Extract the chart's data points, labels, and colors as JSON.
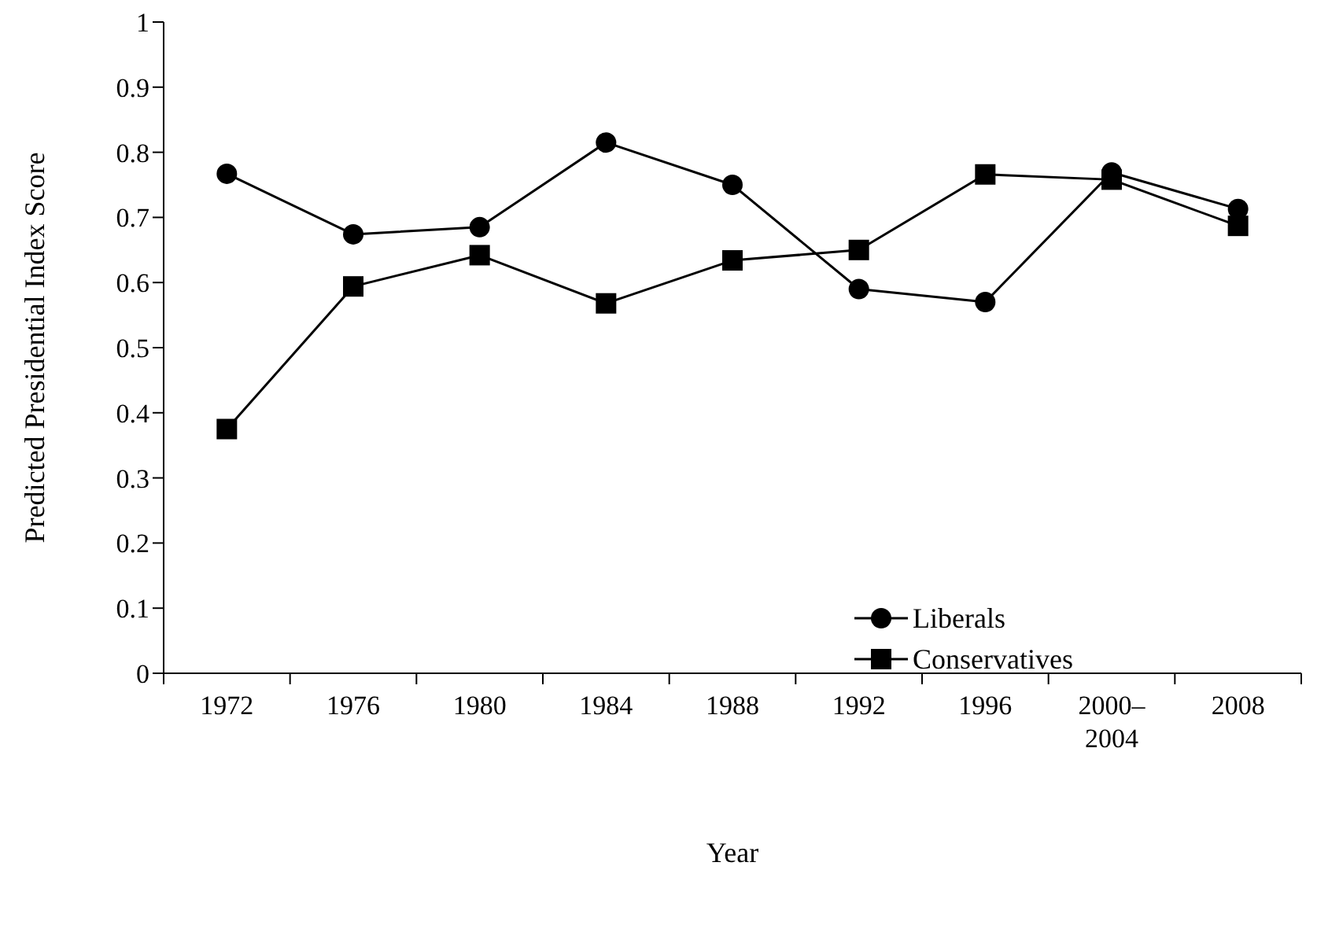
{
  "chart_data": {
    "type": "line",
    "xlabel": "Year",
    "ylabel": "Predicted Presidential Index Score",
    "categories": [
      "1972",
      "1976",
      "1980",
      "1984",
      "1988",
      "1992",
      "1996",
      "2000–2004",
      "2008"
    ],
    "series": [
      {
        "name": "Liberals",
        "color": "#000000",
        "marker": "circle",
        "values": [
          0.767,
          0.674,
          0.685,
          0.815,
          0.75,
          0.59,
          0.57,
          0.769,
          0.713
        ]
      },
      {
        "name": "Conservatives",
        "color": "#000000",
        "marker": "square",
        "values": [
          0.375,
          0.594,
          0.642,
          0.568,
          0.634,
          0.65,
          0.766,
          0.758,
          0.687
        ]
      }
    ],
    "ylim": [
      0,
      1
    ],
    "yticks": [
      0,
      0.1,
      0.2,
      0.3,
      0.4,
      0.5,
      0.6,
      0.7,
      0.8,
      0.9,
      1
    ],
    "grid": false,
    "legend": "bottom right",
    "line_style": "solid"
  }
}
